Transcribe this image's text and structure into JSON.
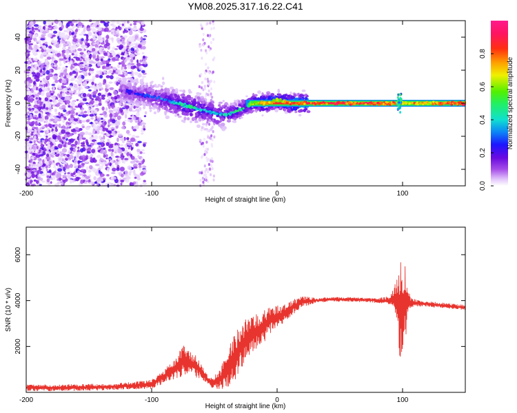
{
  "title": "YM08.2025.317.16.22.C41",
  "chart_data": [
    {
      "type": "heatmap",
      "name": "spectrogram",
      "xlabel": "Height of straight line (km)",
      "ylabel": "Frequency (Hz)",
      "xlim": [
        -200,
        150
      ],
      "ylim": [
        -50,
        50
      ],
      "xticks": [
        -200,
        -100,
        0,
        100
      ],
      "yticks": [
        -40,
        -20,
        0,
        20,
        40
      ],
      "colorbar": {
        "label": "Normalized spectral amplitude",
        "range": [
          0,
          1
        ],
        "ticks": [
          0.0,
          0.2,
          0.4,
          0.6,
          0.8
        ]
      },
      "ridge": {
        "description": "dominant frequency track",
        "x": [
          -120,
          -100,
          -80,
          -70,
          -60,
          -50,
          -40,
          -30,
          -20,
          -10,
          0,
          10,
          20,
          50,
          90,
          100,
          150
        ],
        "y": [
          7,
          4,
          0,
          -2,
          -4,
          -6,
          -7,
          -4,
          0,
          0,
          2,
          0,
          0,
          0,
          0,
          0,
          0
        ],
        "amplitude": [
          0.25,
          0.3,
          0.45,
          0.5,
          0.45,
          0.4,
          0.45,
          0.5,
          0.6,
          0.8,
          0.7,
          0.85,
          0.9,
          0.92,
          0.9,
          0.7,
          0.95
        ]
      }
    },
    {
      "type": "line",
      "name": "snr",
      "xlabel": "Height of straight line (km)",
      "ylabel": "SNR (10 * v/v)",
      "xlim": [
        -200,
        150
      ],
      "ylim": [
        0,
        7200
      ],
      "xticks": [
        -200,
        -100,
        0,
        100
      ],
      "yticks": [
        2000,
        4000,
        6000
      ],
      "color": "#e8342e",
      "x": [
        -200,
        -180,
        -160,
        -140,
        -120,
        -100,
        -90,
        -80,
        -75,
        -70,
        -65,
        -60,
        -55,
        -50,
        -45,
        -40,
        -35,
        -30,
        -25,
        -20,
        -15,
        -10,
        -5,
        0,
        5,
        10,
        15,
        20,
        30,
        40,
        60,
        80,
        90,
        95,
        98,
        100,
        102,
        104,
        106,
        110,
        120,
        130,
        140,
        150
      ],
      "y": [
        200,
        200,
        210,
        230,
        280,
        350,
        700,
        1100,
        1400,
        1300,
        1150,
        900,
        500,
        450,
        600,
        950,
        1400,
        1900,
        2300,
        2500,
        2700,
        2900,
        3200,
        3300,
        3400,
        3600,
        3800,
        3950,
        4000,
        4050,
        4050,
        4000,
        4000,
        4100,
        3600,
        3800,
        3700,
        4000,
        3900,
        3900,
        3850,
        3800,
        3750,
        3700
      ],
      "amplitude": [
        150,
        150,
        150,
        150,
        150,
        200,
        300,
        500,
        700,
        600,
        500,
        300,
        200,
        300,
        500,
        800,
        1000,
        1100,
        900,
        800,
        800,
        700,
        600,
        500,
        400,
        350,
        300,
        250,
        120,
        100,
        100,
        100,
        200,
        800,
        2200,
        2200,
        1800,
        600,
        300,
        150,
        120,
        120,
        120,
        120
      ]
    }
  ]
}
